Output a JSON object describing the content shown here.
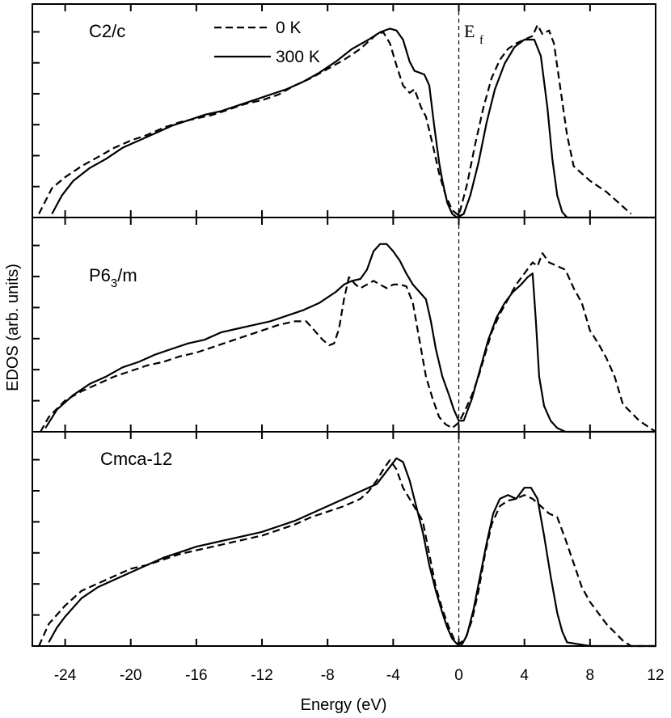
{
  "chart_data": {
    "type": "line",
    "xlabel": "Energy (eV)",
    "ylabel": "EDOS (arb. units)",
    "xlim": [
      -26,
      12
    ],
    "xticks": [
      -24,
      -20,
      -16,
      -12,
      -8,
      -4,
      0,
      4,
      8,
      12
    ],
    "xtick_labels": [
      "-24",
      "-20",
      "-16",
      "-12",
      "-8",
      "-4",
      "0",
      "4",
      "8",
      "12"
    ],
    "fermi_level": {
      "x": 0,
      "label": "E",
      "subscript": "f"
    },
    "legend": {
      "dashed": "0 K",
      "solid": "300 K",
      "placement": "top-center"
    },
    "panels": [
      {
        "label": "C2/c",
        "label_main": "C2/c",
        "label_sub": "",
        "label_tail": "",
        "ylim": [
          0,
          1.12
        ],
        "series": [
          {
            "name": "0 K",
            "style": "dashed",
            "x": [
              -25.6,
              -24.8,
              -24,
              -23,
              -22,
              -21,
              -20,
              -19,
              -18,
              -17,
              -16,
              -15,
              -14,
              -13,
              -12,
              -11,
              -10,
              -9,
              -8,
              -7,
              -6,
              -5.5,
              -5,
              -4.6,
              -4.2,
              -3.8,
              -3.4,
              -3,
              -2.7,
              -2.3,
              -2,
              -1.6,
              -1.2,
              -0.8,
              -0.4,
              0,
              0.5,
              1,
              1.5,
              2,
              2.5,
              3,
              3.5,
              4,
              4.5,
              4.8,
              5.1,
              5.5,
              5.8,
              6.2,
              6.6,
              7,
              8,
              9,
              10,
              10.5
            ],
            "y": [
              0.02,
              0.16,
              0.22,
              0.28,
              0.33,
              0.38,
              0.42,
              0.45,
              0.49,
              0.52,
              0.54,
              0.56,
              0.59,
              0.62,
              0.64,
              0.67,
              0.72,
              0.76,
              0.81,
              0.86,
              0.92,
              0.96,
              1.0,
              1.01,
              0.95,
              0.83,
              0.72,
              0.68,
              0.7,
              0.6,
              0.55,
              0.4,
              0.24,
              0.12,
              0.04,
              0.01,
              0.18,
              0.4,
              0.6,
              0.76,
              0.86,
              0.92,
              0.95,
              0.97,
              0.99,
              1.05,
              1.0,
              1.02,
              0.95,
              0.7,
              0.45,
              0.28,
              0.2,
              0.14,
              0.06,
              0.02
            ]
          },
          {
            "name": "300 K",
            "style": "solid",
            "x": [
              -24.8,
              -24.2,
              -23.5,
              -22.5,
              -21.5,
              -20.5,
              -19.5,
              -18.5,
              -17.5,
              -16.5,
              -15.5,
              -14.5,
              -13.5,
              -12.5,
              -11.5,
              -10.5,
              -9.5,
              -8.5,
              -7.5,
              -6.5,
              -5.5,
              -4.8,
              -4.2,
              -3.8,
              -3.4,
              -3,
              -2.7,
              -2.4,
              -2.1,
              -1.8,
              -1.5,
              -1.2,
              -1,
              -0.7,
              -0.4,
              -0.1,
              0.3,
              0.7,
              1.2,
              1.7,
              2.2,
              2.8,
              3.4,
              4,
              4.6,
              5,
              5.4,
              5.7,
              6,
              6.3,
              6.6,
              8,
              12
            ],
            "y": [
              0.02,
              0.12,
              0.2,
              0.27,
              0.32,
              0.38,
              0.42,
              0.46,
              0.5,
              0.53,
              0.56,
              0.58,
              0.61,
              0.64,
              0.67,
              0.7,
              0.74,
              0.79,
              0.85,
              0.92,
              0.97,
              1.01,
              1.03,
              1.02,
              0.97,
              0.85,
              0.8,
              0.79,
              0.78,
              0.72,
              0.5,
              0.3,
              0.2,
              0.08,
              0.02,
              0.0,
              0.02,
              0.12,
              0.3,
              0.52,
              0.7,
              0.84,
              0.93,
              0.97,
              0.97,
              0.88,
              0.6,
              0.32,
              0.12,
              0.03,
              0.0,
              0.0,
              0.0
            ]
          }
        ]
      },
      {
        "label": "P63/m",
        "label_main": "P6",
        "label_sub": "3",
        "label_tail": "/m",
        "ylim": [
          0,
          1.12
        ],
        "series": [
          {
            "name": "0 K",
            "style": "dashed",
            "x": [
              -25.5,
              -25,
              -24,
              -23,
              -22,
              -21,
              -20,
              -19,
              -18,
              -17,
              -16,
              -15,
              -14,
              -13,
              -12,
              -11,
              -10,
              -9.3,
              -8.8,
              -8.3,
              -7.9,
              -7.6,
              -7.3,
              -7,
              -6.7,
              -6.3,
              -6,
              -5.6,
              -5.2,
              -4.8,
              -4.4,
              -4,
              -3.6,
              -3.2,
              -2.8,
              -2.4,
              -2,
              -1.6,
              -1.2,
              -0.8,
              -0.4,
              0,
              0.4,
              0.8,
              1.2,
              1.6,
              2,
              2.5,
              3,
              3.5,
              4,
              4.5,
              4.8,
              5.1,
              5.5,
              6,
              6.5,
              7,
              7.5,
              8,
              8.5,
              9,
              9.5,
              10,
              11,
              12
            ],
            "y": [
              0.0,
              0.08,
              0.17,
              0.22,
              0.26,
              0.3,
              0.33,
              0.36,
              0.38,
              0.41,
              0.43,
              0.46,
              0.49,
              0.52,
              0.55,
              0.58,
              0.6,
              0.6,
              0.55,
              0.5,
              0.47,
              0.48,
              0.56,
              0.72,
              0.84,
              0.8,
              0.78,
              0.8,
              0.82,
              0.8,
              0.78,
              0.8,
              0.8,
              0.79,
              0.7,
              0.5,
              0.3,
              0.18,
              0.08,
              0.04,
              0.02,
              0.05,
              0.12,
              0.2,
              0.3,
              0.42,
              0.54,
              0.64,
              0.72,
              0.8,
              0.86,
              0.92,
              0.9,
              0.97,
              0.92,
              0.9,
              0.88,
              0.78,
              0.7,
              0.55,
              0.48,
              0.4,
              0.3,
              0.15,
              0.06,
              0.0
            ]
          },
          {
            "name": "300 K",
            "style": "solid",
            "x": [
              -25.2,
              -24.5,
              -23.5,
              -22.5,
              -21.5,
              -20.5,
              -19.5,
              -18.5,
              -17.5,
              -16.5,
              -15.5,
              -14.5,
              -13.5,
              -12.5,
              -11.5,
              -10.5,
              -9.5,
              -8.5,
              -7.5,
              -7,
              -6.5,
              -6,
              -5.6,
              -5.2,
              -4.8,
              -4.4,
              -4,
              -3.6,
              -3.2,
              -2.8,
              -2.4,
              -2,
              -1.7,
              -1.4,
              -1,
              -0.6,
              -0.3,
              0,
              0.3,
              0.8,
              1.3,
              1.8,
              2.3,
              2.8,
              3.3,
              3.8,
              4.2,
              4.5,
              4.7,
              4.9,
              5.2,
              5.6,
              6,
              6.5,
              7,
              12
            ],
            "y": [
              0.02,
              0.12,
              0.2,
              0.26,
              0.3,
              0.35,
              0.38,
              0.42,
              0.45,
              0.48,
              0.5,
              0.54,
              0.56,
              0.58,
              0.6,
              0.63,
              0.66,
              0.7,
              0.76,
              0.8,
              0.82,
              0.83,
              0.88,
              0.98,
              1.02,
              1.02,
              0.98,
              0.93,
              0.86,
              0.8,
              0.76,
              0.72,
              0.6,
              0.45,
              0.3,
              0.2,
              0.12,
              0.06,
              0.06,
              0.18,
              0.34,
              0.5,
              0.62,
              0.7,
              0.76,
              0.8,
              0.84,
              0.86,
              0.6,
              0.3,
              0.14,
              0.06,
              0.02,
              0.0,
              0.0,
              0.0
            ]
          }
        ]
      },
      {
        "label": "Cmca-12",
        "label_main": "Cmca-12",
        "label_sub": "",
        "label_tail": "",
        "ylim": [
          0,
          1.12
        ],
        "series": [
          {
            "name": "0 K",
            "style": "dashed",
            "x": [
              -25.6,
              -25,
              -24,
              -23,
              -22,
              -21,
              -20,
              -19,
              -18,
              -17,
              -16,
              -15,
              -14,
              -13,
              -12,
              -11,
              -10,
              -9,
              -8,
              -7,
              -6,
              -5.5,
              -5,
              -4.6,
              -4.2,
              -3.8,
              -3.4,
              -3,
              -2.6,
              -2.2,
              -1.8,
              -1.4,
              -1,
              -0.6,
              -0.3,
              0,
              0.4,
              0.8,
              1.2,
              1.6,
              2,
              2.5,
              3,
              3.5,
              4,
              4.5,
              5,
              5.5,
              6,
              6.5,
              7,
              7.5,
              8,
              9,
              10,
              10.5,
              12
            ],
            "y": [
              0.0,
              0.12,
              0.22,
              0.3,
              0.34,
              0.38,
              0.42,
              0.44,
              0.47,
              0.5,
              0.52,
              0.54,
              0.56,
              0.58,
              0.6,
              0.63,
              0.66,
              0.7,
              0.73,
              0.76,
              0.8,
              0.84,
              0.9,
              0.96,
              1.01,
              0.96,
              0.86,
              0.8,
              0.74,
              0.68,
              0.5,
              0.32,
              0.2,
              0.1,
              0.04,
              0.01,
              0.04,
              0.14,
              0.3,
              0.5,
              0.66,
              0.76,
              0.79,
              0.8,
              0.82,
              0.8,
              0.76,
              0.72,
              0.7,
              0.58,
              0.45,
              0.32,
              0.24,
              0.12,
              0.03,
              0.0,
              0.0
            ]
          },
          {
            "name": "300 K",
            "style": "solid",
            "x": [
              -25,
              -24.5,
              -24,
              -23,
              -22,
              -21,
              -20,
              -19,
              -18,
              -17,
              -16,
              -15,
              -14,
              -13,
              -12,
              -11,
              -10,
              -9,
              -8,
              -7,
              -6,
              -5,
              -4.4,
              -3.8,
              -3.4,
              -3,
              -2.6,
              -2.2,
              -1.8,
              -1.4,
              -1,
              -0.7,
              -0.4,
              -0.1,
              0.2,
              0.5,
              0.9,
              1.3,
              1.7,
              2.1,
              2.5,
              3,
              3.5,
              4,
              4.4,
              4.8,
              5.2,
              5.6,
              6,
              6.3,
              6.6,
              8,
              12
            ],
            "y": [
              0.02,
              0.1,
              0.16,
              0.26,
              0.32,
              0.36,
              0.4,
              0.44,
              0.48,
              0.51,
              0.54,
              0.56,
              0.58,
              0.6,
              0.62,
              0.65,
              0.68,
              0.72,
              0.76,
              0.8,
              0.84,
              0.88,
              0.95,
              1.02,
              1.0,
              0.9,
              0.76,
              0.62,
              0.44,
              0.3,
              0.18,
              0.1,
              0.04,
              0.01,
              0.01,
              0.06,
              0.2,
              0.38,
              0.56,
              0.72,
              0.8,
              0.82,
              0.8,
              0.86,
              0.86,
              0.8,
              0.6,
              0.38,
              0.18,
              0.08,
              0.02,
              0.0,
              0.0
            ]
          }
        ]
      }
    ]
  }
}
